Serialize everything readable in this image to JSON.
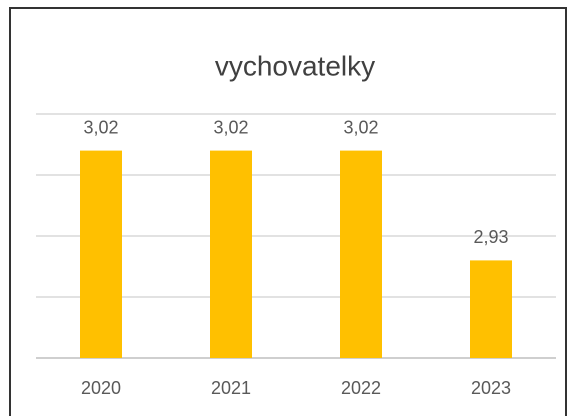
{
  "chart_data": {
    "type": "bar",
    "title": "vychovatelky",
    "categories": [
      "2020",
      "2021",
      "2022",
      "2023"
    ],
    "values": [
      3.02,
      3.02,
      3.02,
      2.93
    ],
    "value_labels": [
      "3,02",
      "3,02",
      "3,02",
      "2,93"
    ],
    "color": "#ffc000",
    "ylim": [
      2.85,
      3.05
    ],
    "yticks": [
      2.85,
      2.9,
      2.95,
      3.0,
      3.05
    ],
    "grid": true
  }
}
